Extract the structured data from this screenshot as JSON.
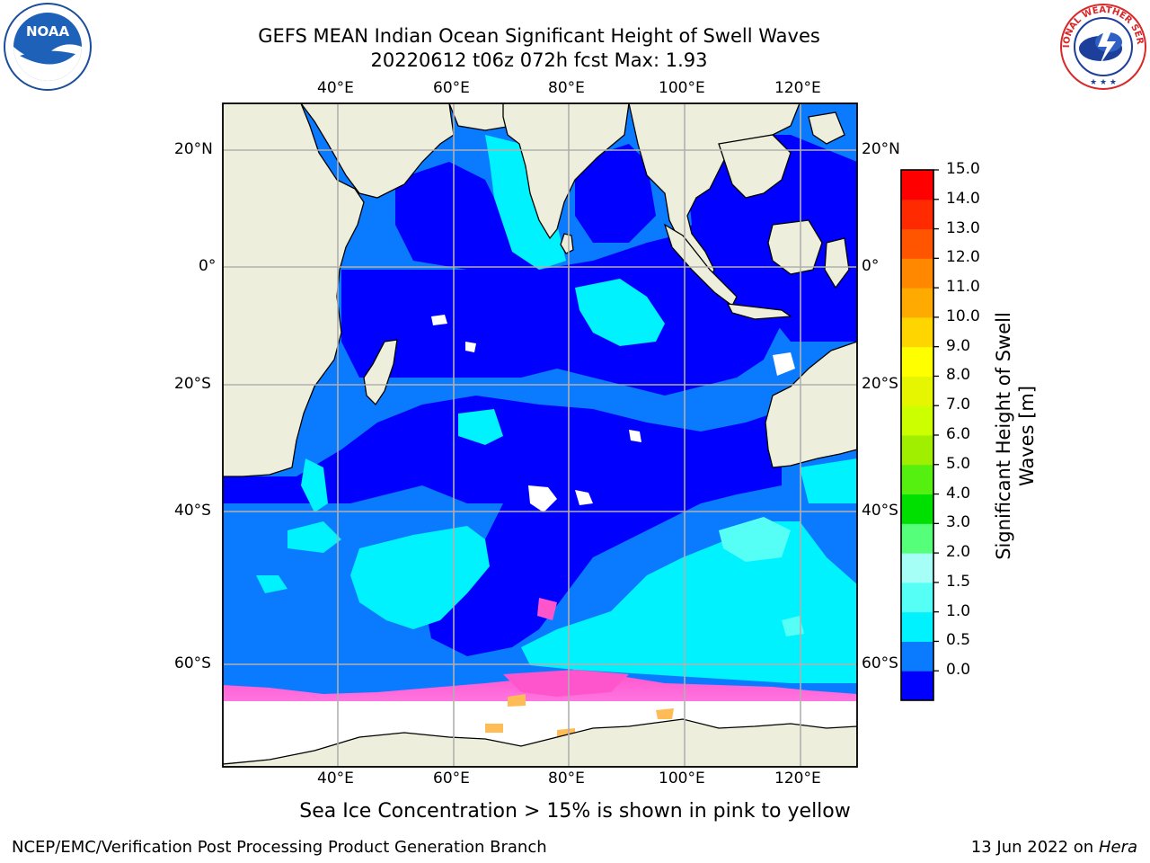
{
  "title_line1": "GEFS MEAN Indian Ocean Significant Height of Swell Waves",
  "title_line2": "20220612 t06z 072h fcst   Max: 1.93",
  "logos": {
    "left": "NOAA",
    "right": "NATIONAL WEATHER SERVICE"
  },
  "map": {
    "lon_ticks": [
      "40°E",
      "60°E",
      "80°E",
      "100°E",
      "120°E"
    ],
    "lat_ticks_left": [
      "20°N",
      "0°",
      "20°S",
      "40°S",
      "60°S"
    ],
    "lat_ticks_right": [
      "20°N",
      "0°",
      "20°S",
      "40°S",
      "60°S"
    ],
    "colors": {
      "land": "#eeeedc",
      "ice": "#ffffff",
      "gridline": "#b0b0b0"
    }
  },
  "colorbar": {
    "label": "Significant Height of Swell Waves [m]",
    "label_line1": "Significant Height of Swell",
    "label_line2": "Waves [m]",
    "tick_labels": [
      "15.0",
      "14.0",
      "13.0",
      "12.0",
      "11.0",
      "10.0",
      "9.0",
      "8.0",
      "7.0",
      "6.0",
      "5.0",
      "4.0",
      "3.0",
      "2.0",
      "1.5",
      "1.0",
      "0.5",
      "0.0"
    ],
    "colors_bottom_to_top": [
      "#0000ff",
      "#0a7aff",
      "#00f2ff",
      "#55fff6",
      "#a6fff6",
      "#55ff7a",
      "#00e000",
      "#55ef10",
      "#a0ef00",
      "#ccff00",
      "#e6f500",
      "#ffff00",
      "#ffd500",
      "#ffaa00",
      "#ff8800",
      "#ff5500",
      "#ff2a00",
      "#ff0000"
    ]
  },
  "ice_note": "Sea Ice Concentration > 15% is shown in pink to yellow",
  "footer_left": "NCEP/EMC/Verification Post Processing Product Generation Branch",
  "footer_date": "13 Jun 2022 on",
  "footer_host": "Hera"
}
